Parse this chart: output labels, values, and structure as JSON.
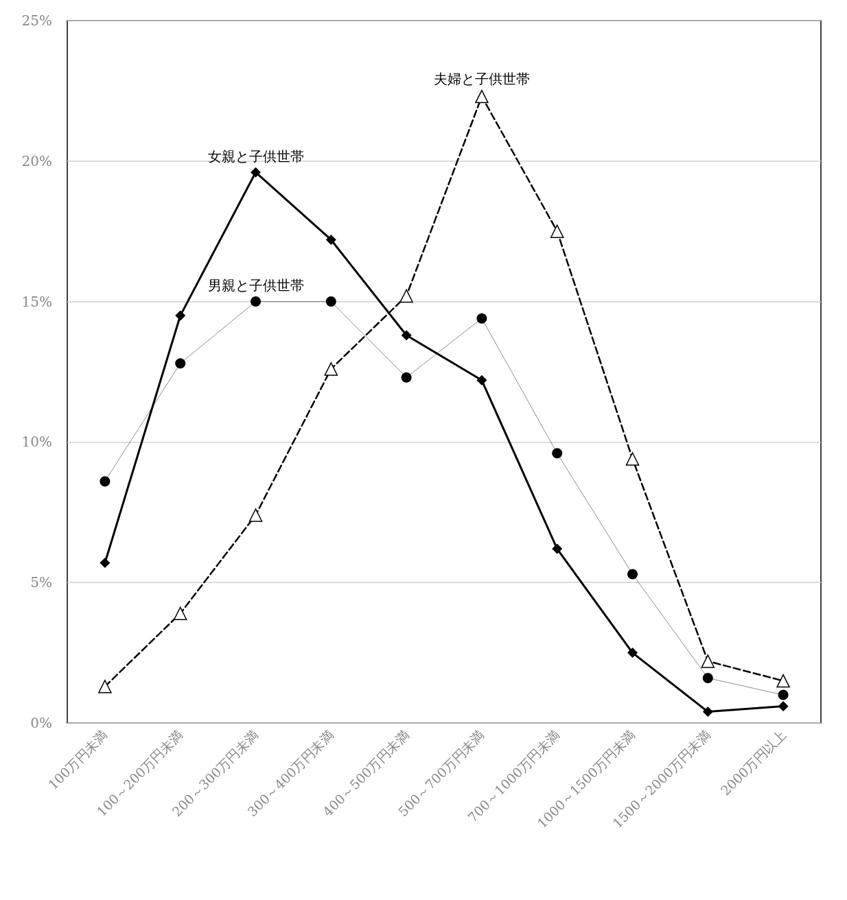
{
  "chart_data": {
    "type": "line",
    "categories": [
      "100万円未満",
      "100～200万円未満",
      "200～300万円未満",
      "300～400万円未満",
      "400～500万円未満",
      "500～700万円未満",
      "700～1000万円未満",
      "1000～1500万円未満",
      "1500～2000万円未満",
      "2000万円以上"
    ],
    "series": [
      {
        "name": "女親と子供世帯",
        "color": "#000000",
        "marker": "diamond",
        "line_style": "solid",
        "values": [
          5.7,
          14.5,
          19.6,
          17.2,
          13.8,
          12.2,
          6.2,
          2.5,
          0.4,
          0.6
        ]
      },
      {
        "name": "男親と子供世帯",
        "color": "#000000",
        "marker": "circle",
        "line_style": "solid",
        "values": [
          8.6,
          12.8,
          15.0,
          15.0,
          12.3,
          14.4,
          9.6,
          5.3,
          1.6,
          1.0
        ]
      },
      {
        "name": "夫婦と子供世帯",
        "color": "#000000",
        "marker": "triangle",
        "line_style": "dashed",
        "values": [
          1.3,
          3.9,
          7.4,
          12.6,
          15.2,
          22.3,
          17.5,
          9.4,
          2.2,
          1.5
        ]
      }
    ],
    "ylim": [
      0,
      25
    ],
    "yticks": [
      {
        "value": 0,
        "label": "0%"
      },
      {
        "value": 5,
        "label": "5%"
      },
      {
        "value": 10,
        "label": "10%"
      },
      {
        "value": 15,
        "label": "15%"
      },
      {
        "value": 20,
        "label": "20%"
      },
      {
        "value": 25,
        "label": "25%"
      }
    ],
    "grid": "y",
    "legend": false
  }
}
